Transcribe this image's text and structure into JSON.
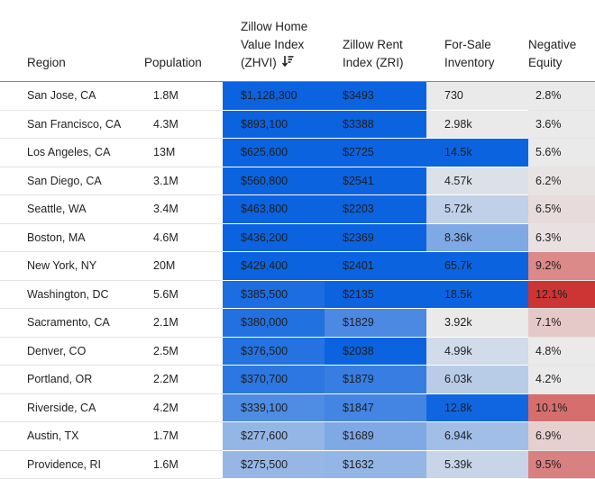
{
  "table": {
    "columns": [
      {
        "key": "region",
        "label_lines": [
          "Region"
        ]
      },
      {
        "key": "population",
        "label_lines": [
          "Population"
        ]
      },
      {
        "key": "zhvi",
        "label_lines": [
          "Zillow Home",
          "Value Index",
          "(ZHVI)"
        ],
        "sort_icon": "sort-descending-icon"
      },
      {
        "key": "zri",
        "label_lines": [
          "Zillow Rent",
          "Index (ZRI)"
        ]
      },
      {
        "key": "inventory",
        "label_lines": [
          "For-Sale",
          "Inventory"
        ]
      },
      {
        "key": "neg_equity",
        "label_lines": [
          "Negative",
          "Equity"
        ]
      }
    ],
    "rows": [
      {
        "region": "San Jose, CA",
        "population": "1.8M",
        "zhvi": "$1,128,300",
        "zri": "$3493",
        "inventory": "730",
        "neg_equity": "2.8%"
      },
      {
        "region": "San Francisco, CA",
        "population": "4.3M",
        "zhvi": "$893,100",
        "zri": "$3388",
        "inventory": "2.98k",
        "neg_equity": "3.6%"
      },
      {
        "region": "Los Angeles, CA",
        "population": "13M",
        "zhvi": "$625,600",
        "zri": "$2725",
        "inventory": "14.5k",
        "neg_equity": "5.6%"
      },
      {
        "region": "San Diego, CA",
        "population": "3.1M",
        "zhvi": "$560,800",
        "zri": "$2541",
        "inventory": "4.57k",
        "neg_equity": "6.2%"
      },
      {
        "region": "Seattle, WA",
        "population": "3.4M",
        "zhvi": "$463,800",
        "zri": "$2203",
        "inventory": "5.72k",
        "neg_equity": "6.5%"
      },
      {
        "region": "Boston, MA",
        "population": "4.6M",
        "zhvi": "$436,200",
        "zri": "$2369",
        "inventory": "8.36k",
        "neg_equity": "6.3%"
      },
      {
        "region": "New York, NY",
        "population": "20M",
        "zhvi": "$429,400",
        "zri": "$2401",
        "inventory": "65.7k",
        "neg_equity": "9.2%"
      },
      {
        "region": "Washington, DC",
        "population": "5.6M",
        "zhvi": "$385,500",
        "zri": "$2135",
        "inventory": "18.5k",
        "neg_equity": "12.1%"
      },
      {
        "region": "Sacramento, CA",
        "population": "2.1M",
        "zhvi": "$380,000",
        "zri": "$1829",
        "inventory": "3.92k",
        "neg_equity": "7.1%"
      },
      {
        "region": "Denver, CO",
        "population": "2.5M",
        "zhvi": "$376,500",
        "zri": "$2038",
        "inventory": "4.99k",
        "neg_equity": "4.8%"
      },
      {
        "region": "Portland, OR",
        "population": "2.2M",
        "zhvi": "$370,700",
        "zri": "$1879",
        "inventory": "6.03k",
        "neg_equity": "4.2%"
      },
      {
        "region": "Riverside, CA",
        "population": "4.2M",
        "zhvi": "$339,100",
        "zri": "$1847",
        "inventory": "12.8k",
        "neg_equity": "10.1%"
      },
      {
        "region": "Austin, TX",
        "population": "1.7M",
        "zhvi": "$277,600",
        "zri": "$1689",
        "inventory": "6.94k",
        "neg_equity": "6.9%"
      },
      {
        "region": "Providence, RI",
        "population": "1.6M",
        "zhvi": "$275,500",
        "zri": "$1632",
        "inventory": "5.39k",
        "neg_equity": "9.5%"
      }
    ]
  },
  "colors": {
    "blue_strong": "#0b63e0",
    "blue_mid": "#4f8fe4",
    "blue_light": "#a9c8ee",
    "neutral": "#ececec",
    "red_light": "#efbcbc",
    "red_mid": "#dd8383",
    "red_strong": "#cd3434"
  },
  "chart_data": {
    "type": "table",
    "sorted_by": "zhvi",
    "sort_order": "descending",
    "color_scales": {
      "zhvi": {
        "min": 200000,
        "max": 400000,
        "low_color": "#eaeaea",
        "high_color": "#0b63e0"
      },
      "zri": {
        "min": 1400,
        "max": 2000,
        "low_color": "#eaeaea",
        "high_color": "#0b63e0"
      },
      "inventory": {
        "min": 4000,
        "max": 13000,
        "low_color": "#eaeaea",
        "high_color": "#0b63e0"
      },
      "neg_equity": {
        "min": 6,
        "max": 12,
        "low_color": "#eaeaea",
        "high_color": "#cd3434"
      }
    },
    "values": {
      "zhvi": [
        1128300,
        893100,
        625600,
        560800,
        463800,
        436200,
        429400,
        385500,
        380000,
        376500,
        370700,
        339100,
        277600,
        275500
      ],
      "zri": [
        3493,
        3388,
        2725,
        2541,
        2203,
        2369,
        2401,
        2135,
        1829,
        2038,
        1879,
        1847,
        1689,
        1632
      ],
      "inventory": [
        730,
        2980,
        14500,
        4570,
        5720,
        8360,
        65700,
        18500,
        3920,
        4990,
        6030,
        12800,
        6940,
        5390
      ],
      "neg_equity": [
        2.8,
        3.6,
        5.6,
        6.2,
        6.5,
        6.3,
        9.2,
        12.1,
        7.1,
        4.8,
        4.2,
        10.1,
        6.9,
        9.5
      ]
    }
  }
}
